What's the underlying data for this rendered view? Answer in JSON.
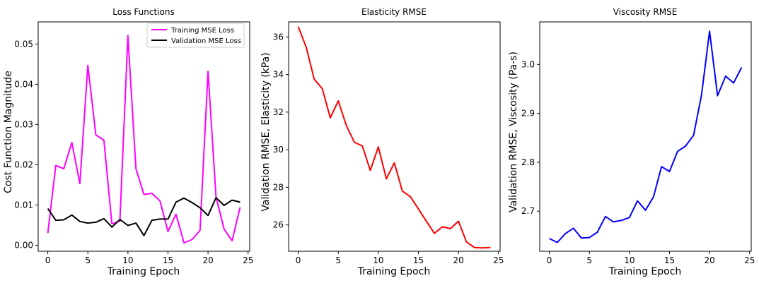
{
  "chart_data": [
    {
      "type": "line",
      "title": "Loss Functions",
      "xlabel": "Training Epoch",
      "ylabel": "Cost Function Magnitude",
      "xlim": [
        -1.2,
        25.2
      ],
      "ylim": [
        -0.0015,
        0.0555
      ],
      "xticks": [
        "0",
        "5",
        "10",
        "15",
        "20",
        "25"
      ],
      "yticks": [
        "0.00",
        "0.01",
        "0.02",
        "0.03",
        "0.04",
        "0.05"
      ],
      "legend": "top-right",
      "x": [
        0,
        1,
        2,
        3,
        4,
        5,
        6,
        7,
        8,
        9,
        10,
        11,
        12,
        13,
        14,
        15,
        16,
        17,
        18,
        19,
        20,
        21,
        22,
        23,
        24
      ],
      "series": [
        {
          "name": "Training MSE Loss",
          "color": "#ff00ff",
          "values": [
            0.003,
            0.0198,
            0.019,
            0.0255,
            0.0153,
            0.0447,
            0.0274,
            0.0261,
            0.0053,
            0.006,
            0.0521,
            0.019,
            0.0126,
            0.0129,
            0.011,
            0.0034,
            0.0077,
            0.0006,
            0.0014,
            0.0037,
            0.0432,
            0.012,
            0.004,
            0.0011,
            0.0094
          ]
        },
        {
          "name": "Validation MSE Loss",
          "color": "#000000",
          "values": [
            0.0091,
            0.0062,
            0.0063,
            0.0075,
            0.0059,
            0.0055,
            0.0057,
            0.0066,
            0.0045,
            0.0064,
            0.0049,
            0.0055,
            0.0024,
            0.0062,
            0.0065,
            0.0065,
            0.0107,
            0.0117,
            0.0106,
            0.0093,
            0.0074,
            0.0118,
            0.0099,
            0.0112,
            0.0107
          ]
        }
      ]
    },
    {
      "type": "line",
      "title": "Elasticity RMSE",
      "xlabel": "Training Epoch",
      "ylabel": "Validation RMSE, Elasticity (kPa)",
      "xlim": [
        -1.2,
        25.2
      ],
      "ylim": [
        24.6,
        36.8
      ],
      "xticks": [
        "0",
        "5",
        "10",
        "15",
        "20",
        "25"
      ],
      "yticks": [
        "26",
        "28",
        "30",
        "32",
        "34",
        "36"
      ],
      "x": [
        0,
        1,
        2,
        3,
        4,
        5,
        6,
        7,
        8,
        9,
        10,
        11,
        12,
        13,
        14,
        15,
        16,
        17,
        18,
        19,
        20,
        21,
        22,
        23,
        24
      ],
      "series": [
        {
          "color": "#ff0000",
          "values": [
            36.55,
            35.45,
            33.75,
            33.25,
            31.7,
            32.6,
            31.3,
            30.4,
            30.2,
            28.9,
            30.15,
            28.45,
            29.3,
            27.8,
            27.5,
            26.85,
            26.2,
            25.55,
            25.9,
            25.8,
            26.2,
            25.1,
            24.8,
            24.78,
            24.8
          ]
        }
      ]
    },
    {
      "type": "line",
      "title": "Viscosity RMSE",
      "xlabel": "Training Epoch",
      "ylabel": "Validation RMSE, Viscosity (Pa-s)",
      "xlim": [
        -1.2,
        25.2
      ],
      "ylim": [
        2.618,
        3.087
      ],
      "xticks": [
        "0",
        "5",
        "10",
        "15",
        "20",
        "25"
      ],
      "yticks": [
        "2.7",
        "2.8",
        "2.9",
        "3.0"
      ],
      "x": [
        0,
        1,
        2,
        3,
        4,
        5,
        6,
        7,
        8,
        9,
        10,
        11,
        12,
        13,
        14,
        15,
        16,
        17,
        18,
        19,
        20,
        21,
        22,
        23,
        24
      ],
      "series": [
        {
          "color": "#0000ff",
          "values": [
            2.644,
            2.636,
            2.654,
            2.665,
            2.645,
            2.646,
            2.657,
            2.689,
            2.678,
            2.681,
            2.687,
            2.721,
            2.702,
            2.729,
            2.791,
            2.781,
            2.822,
            2.833,
            2.855,
            2.938,
            3.068,
            2.936,
            2.976,
            2.962,
            2.994
          ]
        }
      ]
    }
  ]
}
